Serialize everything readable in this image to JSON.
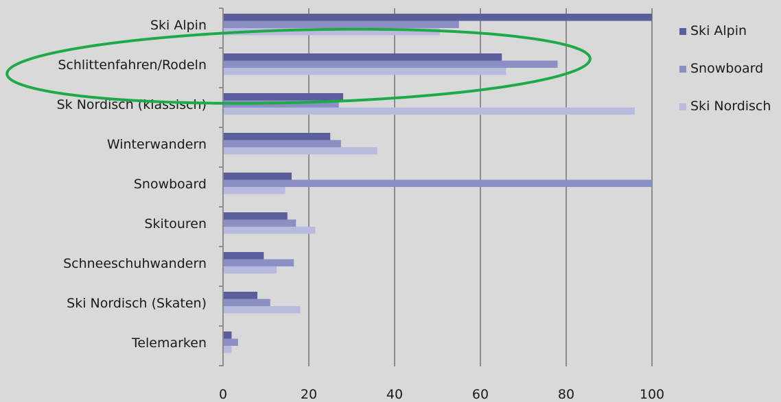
{
  "chart_data": {
    "type": "bar",
    "orientation": "horizontal",
    "categories": [
      "Ski Alpin",
      "Schlittenfahren/Rodeln",
      "Sk Nordisch (klassisch)",
      "Winterwandern",
      "Snowboard",
      "Skitouren",
      "Schneeschuhwandern",
      "Ski Nordisch (Skaten)",
      "Telemarken"
    ],
    "series": [
      {
        "name": "Ski Alpin",
        "color": "#5a5f9c",
        "values": [
          100,
          65,
          28,
          25,
          16,
          15,
          9.5,
          8,
          2
        ]
      },
      {
        "name": "Snowboard",
        "color": "#8c8fc4",
        "values": [
          55,
          78,
          27,
          27.5,
          100,
          17,
          16.5,
          11,
          3.5
        ]
      },
      {
        "name": "Ski Nordisch",
        "color": "#b9bbde",
        "values": [
          50.5,
          66,
          96,
          36,
          14.5,
          21.5,
          12.5,
          18,
          2
        ]
      }
    ],
    "xlim": [
      0,
      100
    ],
    "xticks": [
      "0",
      "20",
      "40",
      "60",
      "80",
      "100"
    ],
    "grid": true,
    "legend_position": "right",
    "highlight": {
      "category": "Schlittenfahren/Rodeln",
      "shape": "ellipse",
      "color": "#1faa4a"
    }
  }
}
